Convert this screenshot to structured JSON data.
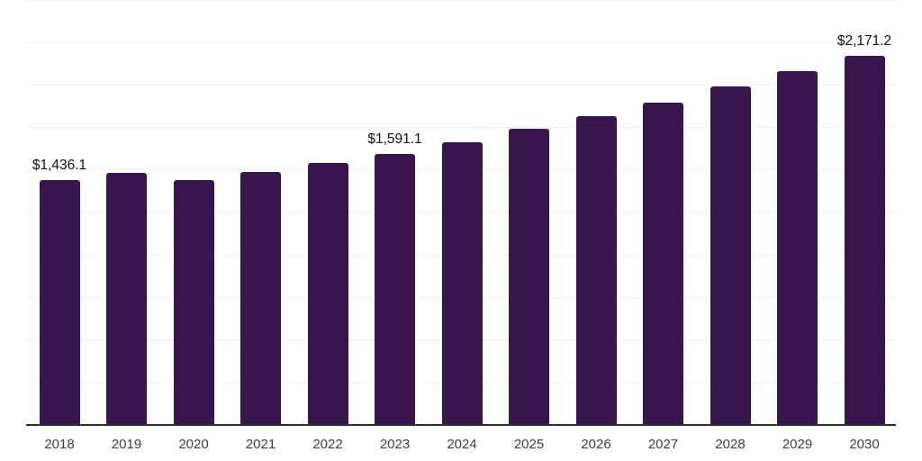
{
  "chart_data": {
    "type": "bar",
    "title": "",
    "xlabel": "",
    "ylabel": "",
    "categories": [
      "2018",
      "2019",
      "2020",
      "2021",
      "2022",
      "2023",
      "2024",
      "2025",
      "2026",
      "2027",
      "2028",
      "2029",
      "2030"
    ],
    "values": [
      1436.1,
      1480.6,
      1441.0,
      1486.2,
      1536.9,
      1591.1,
      1660.5,
      1739.4,
      1817.9,
      1896.3,
      1988.0,
      2081.6,
      2171.2
    ],
    "data_labels": [
      "$1,436.1",
      null,
      null,
      null,
      null,
      "$1,591.1",
      null,
      null,
      null,
      null,
      null,
      null,
      "$2,171.2"
    ],
    "ylim": [
      0,
      2500
    ],
    "gridline_step": 250,
    "grid": "horizontal, light, no y-axis tick labels",
    "legend": "none",
    "bar_color": "#38154d",
    "axis_line_color": "#2e2e2e",
    "gridline_color": "#f2f2f2",
    "tick_label_color": "#3d3d3d",
    "data_label_color": "#111111"
  }
}
